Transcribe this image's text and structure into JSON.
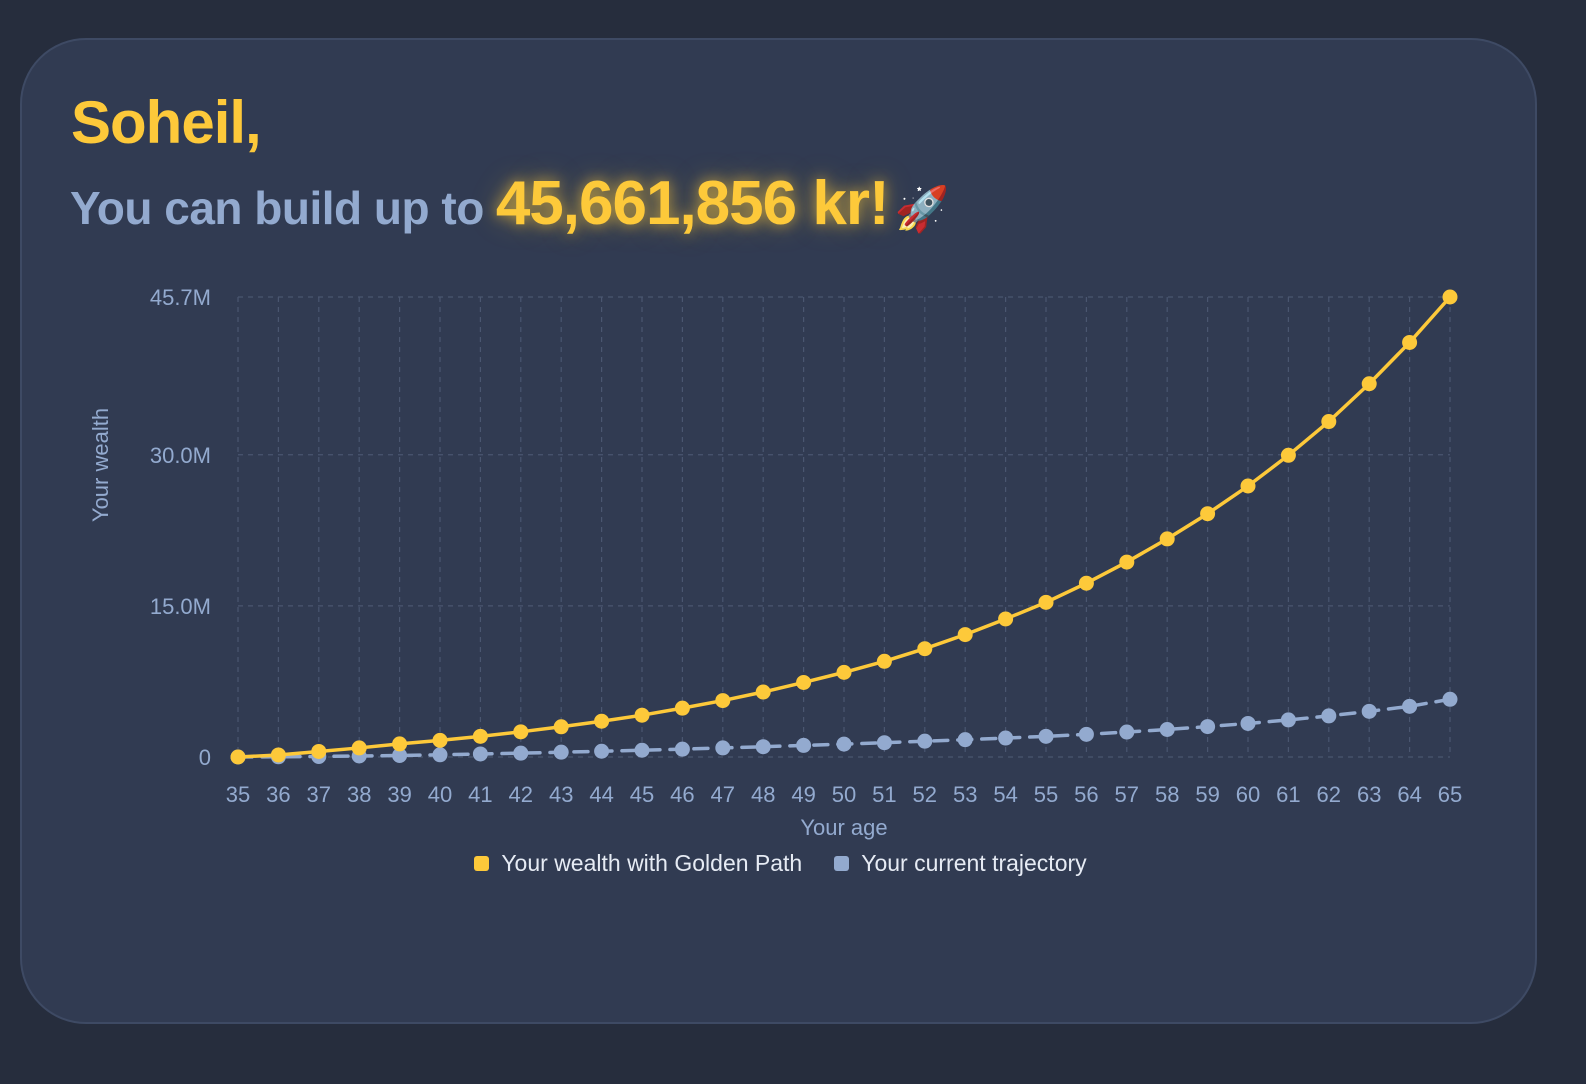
{
  "header": {
    "greeting": "Soheil,",
    "headline": "You can build up to",
    "amount": "45,661,856 kr!",
    "emoji": "🚀"
  },
  "colors": {
    "background": "#262d3d",
    "card": "#313b52",
    "accent": "#fdc93a",
    "secondary": "#93aacf",
    "grid": "#4a5670"
  },
  "chart_data": {
    "type": "line",
    "xlabel": "Your age",
    "ylabel": "Your wealth",
    "x": [
      35,
      36,
      37,
      38,
      39,
      40,
      41,
      42,
      43,
      44,
      45,
      46,
      47,
      48,
      49,
      50,
      51,
      52,
      53,
      54,
      55,
      56,
      57,
      58,
      59,
      60,
      61,
      62,
      63,
      64,
      65
    ],
    "ylim": [
      0,
      45661856
    ],
    "yticks": [
      0,
      15000000,
      30000000,
      45661856
    ],
    "ytick_labels": [
      "0",
      "15.0M",
      "30.0M",
      "45.7M"
    ],
    "grid": true,
    "legend_position": "bottom",
    "series": [
      {
        "name": "Your wealth with Golden Path",
        "color": "#fdc93a",
        "line_style": "solid",
        "values": [
          0,
          200000,
          550000,
          900000,
          1300000,
          1650000,
          2050000,
          2500000,
          3000000,
          3550000,
          4150000,
          4850000,
          5600000,
          6450000,
          7400000,
          8400000,
          9500000,
          10750000,
          12150000,
          13700000,
          15350000,
          17250000,
          19350000,
          21650000,
          24150000,
          26900000,
          29950000,
          33300000,
          37050000,
          41150000,
          45661856
        ]
      },
      {
        "name": "Your current trajectory",
        "color": "#93aacf",
        "line_style": "dashed",
        "values": [
          0,
          20000,
          50000,
          100000,
          150000,
          220000,
          300000,
          380000,
          480000,
          570000,
          670000,
          780000,
          900000,
          1020000,
          1150000,
          1280000,
          1420000,
          1570000,
          1720000,
          1880000,
          2050000,
          2250000,
          2480000,
          2730000,
          3020000,
          3330000,
          3680000,
          4080000,
          4530000,
          5030000,
          5730000
        ]
      }
    ]
  }
}
